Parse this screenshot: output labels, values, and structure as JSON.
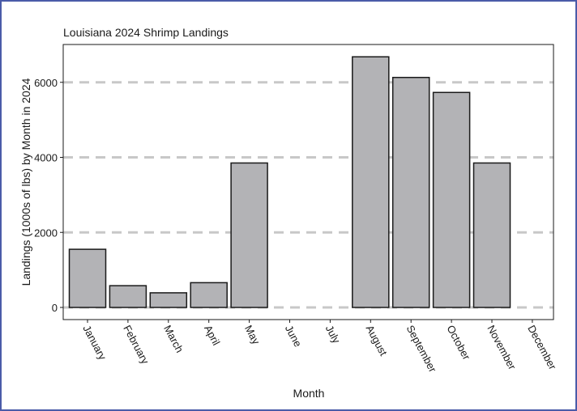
{
  "chart_data": {
    "type": "bar",
    "title": "Louisiana 2024 Shrimp Landings",
    "xlabel": "Month",
    "ylabel": "Landings (1000s of lbs) by Month in 2024",
    "categories": [
      "January",
      "February",
      "March",
      "April",
      "May",
      "June",
      "July",
      "August",
      "September",
      "October",
      "November",
      "December"
    ],
    "values": [
      1550,
      580,
      390,
      660,
      3850,
      0,
      0,
      6680,
      6130,
      5730,
      3850,
      0
    ],
    "ylim": [
      0,
      7000
    ],
    "yticks": [
      0,
      2000,
      4000,
      6000
    ],
    "grid": "horizontal dashed at major ticks",
    "legend": "none",
    "colors": {
      "bar_fill": "#b3b3b6",
      "bar_stroke": "#1a1a1a",
      "grid": "#c8c8c8",
      "frame": "#4a5ba8"
    }
  }
}
